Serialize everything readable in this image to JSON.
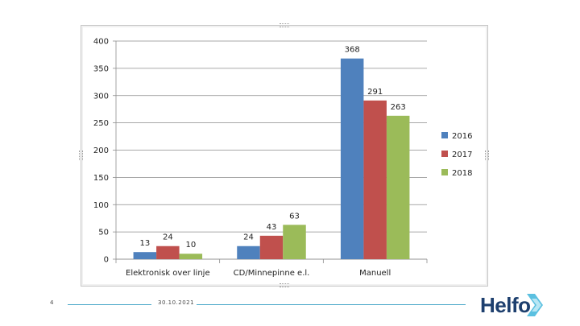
{
  "chart_data": {
    "type": "bar",
    "categories": [
      "Elektronisk over linje",
      "CD/Minnepinne e.l.",
      "Manuell"
    ],
    "series": [
      {
        "name": "2016",
        "color": "#4f81bd",
        "values": [
          13,
          24,
          368
        ]
      },
      {
        "name": "2017",
        "color": "#c0504d",
        "values": [
          24,
          43,
          291
        ]
      },
      {
        "name": "2018",
        "color": "#9bbb59",
        "values": [
          10,
          63,
          263
        ]
      }
    ],
    "ylim": [
      0,
      400
    ],
    "yticks": [
      0,
      50,
      100,
      150,
      200,
      250,
      300,
      350,
      400
    ],
    "grid": true,
    "legend": "right",
    "title": "",
    "xlabel": "",
    "ylabel": ""
  },
  "footer": {
    "slide_number": "4",
    "date": "30.10.2021"
  },
  "logo": {
    "text": "Helfo",
    "accent_color": "#5bc0e0",
    "text_color": "#1d3f6e"
  }
}
